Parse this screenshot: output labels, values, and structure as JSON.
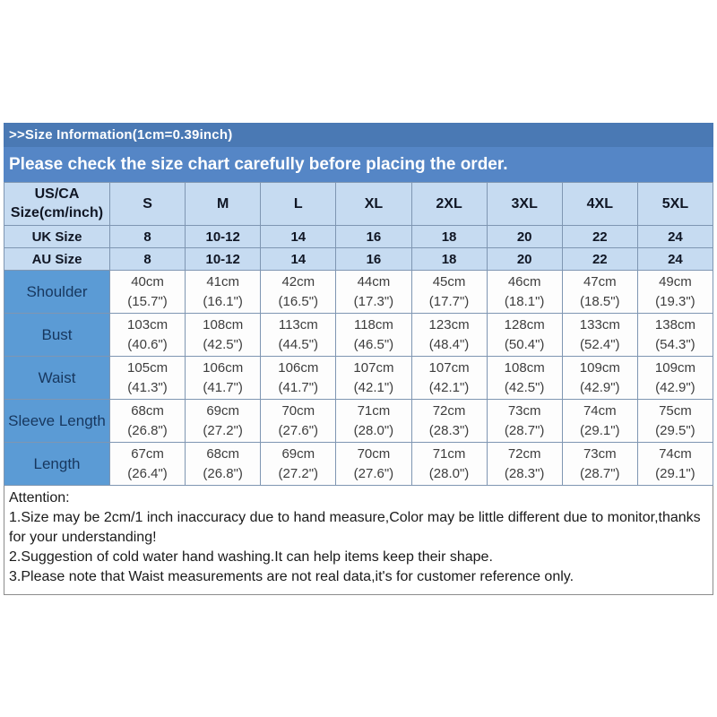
{
  "header": {
    "title": ">>Size Information(1cm=0.39inch)",
    "subtitle": "Please check the size chart carefully before placing the order."
  },
  "table": {
    "corner_line1": "US/CA",
    "corner_line2": "Size(cm/inch)",
    "size_columns": [
      "S",
      "M",
      "L",
      "XL",
      "2XL",
      "3XL",
      "4XL",
      "5XL"
    ],
    "size_rows": [
      {
        "label": "UK Size",
        "values": [
          "8",
          "10-12",
          "14",
          "16",
          "18",
          "20",
          "22",
          "24"
        ]
      },
      {
        "label": "AU Size",
        "values": [
          "8",
          "10-12",
          "14",
          "16",
          "18",
          "20",
          "22",
          "24"
        ]
      }
    ],
    "measurement_rows": [
      {
        "label": "Shoulder",
        "cells": [
          {
            "cm": "40cm",
            "inch": "(15.7\")"
          },
          {
            "cm": "41cm",
            "inch": "(16.1\")"
          },
          {
            "cm": "42cm",
            "inch": "(16.5\")"
          },
          {
            "cm": "44cm",
            "inch": "(17.3\")"
          },
          {
            "cm": "45cm",
            "inch": "(17.7\")"
          },
          {
            "cm": "46cm",
            "inch": "(18.1\")"
          },
          {
            "cm": "47cm",
            "inch": "(18.5\")"
          },
          {
            "cm": "49cm",
            "inch": "(19.3\")"
          }
        ]
      },
      {
        "label": "Bust",
        "cells": [
          {
            "cm": "103cm",
            "inch": "(40.6\")"
          },
          {
            "cm": "108cm",
            "inch": "(42.5\")"
          },
          {
            "cm": "113cm",
            "inch": "(44.5\")"
          },
          {
            "cm": "118cm",
            "inch": "(46.5\")"
          },
          {
            "cm": "123cm",
            "inch": "(48.4\")"
          },
          {
            "cm": "128cm",
            "inch": "(50.4\")"
          },
          {
            "cm": "133cm",
            "inch": "(52.4\")"
          },
          {
            "cm": "138cm",
            "inch": "(54.3\")"
          }
        ]
      },
      {
        "label": "Waist",
        "cells": [
          {
            "cm": "105cm",
            "inch": "(41.3\")"
          },
          {
            "cm": "106cm",
            "inch": "(41.7\")"
          },
          {
            "cm": "106cm",
            "inch": "(41.7\")"
          },
          {
            "cm": "107cm",
            "inch": "(42.1\")"
          },
          {
            "cm": "107cm",
            "inch": "(42.1\")"
          },
          {
            "cm": "108cm",
            "inch": "(42.5\")"
          },
          {
            "cm": "109cm",
            "inch": "(42.9\")"
          },
          {
            "cm": "109cm",
            "inch": "(42.9\")"
          }
        ]
      },
      {
        "label": "Sleeve Length",
        "cells": [
          {
            "cm": "68cm",
            "inch": "(26.8\")"
          },
          {
            "cm": "69cm",
            "inch": "(27.2\")"
          },
          {
            "cm": "70cm",
            "inch": "(27.6\")"
          },
          {
            "cm": "71cm",
            "inch": "(28.0\")"
          },
          {
            "cm": "72cm",
            "inch": "(28.3\")"
          },
          {
            "cm": "73cm",
            "inch": "(28.7\")"
          },
          {
            "cm": "74cm",
            "inch": "(29.1\")"
          },
          {
            "cm": "75cm",
            "inch": "(29.5\")"
          }
        ]
      },
      {
        "label": "Length",
        "cells": [
          {
            "cm": "67cm",
            "inch": "(26.4\")"
          },
          {
            "cm": "68cm",
            "inch": "(26.8\")"
          },
          {
            "cm": "69cm",
            "inch": "(27.2\")"
          },
          {
            "cm": "70cm",
            "inch": "(27.6\")"
          },
          {
            "cm": "71cm",
            "inch": "(28.0\")"
          },
          {
            "cm": "72cm",
            "inch": "(28.3\")"
          },
          {
            "cm": "73cm",
            "inch": "(28.7\")"
          },
          {
            "cm": "74cm",
            "inch": "(29.1\")"
          }
        ]
      }
    ]
  },
  "attention": {
    "heading": "Attention:",
    "notes": [
      "1.Size may be 2cm/1 inch inaccuracy due to hand measure,Color may be little different due to monitor,thanks for your understanding!",
      "2.Suggestion of cold water hand washing.It can help items keep their shape.",
      "3.Please note that Waist measurements are not real data,it's for customer reference only."
    ]
  },
  "colors": {
    "title_band_bg": "#4a79b4",
    "subtitle_band_bg": "#5586c6",
    "header_cell_bg": "#c6dbf1",
    "label_cell_bg": "#5b9bd5",
    "data_cell_bg": "#fdfdfd",
    "grid_border": "#7f96b2",
    "banner_text": "#ffffff",
    "label_text": "#17375e",
    "data_text": "#3d3d3d"
  }
}
